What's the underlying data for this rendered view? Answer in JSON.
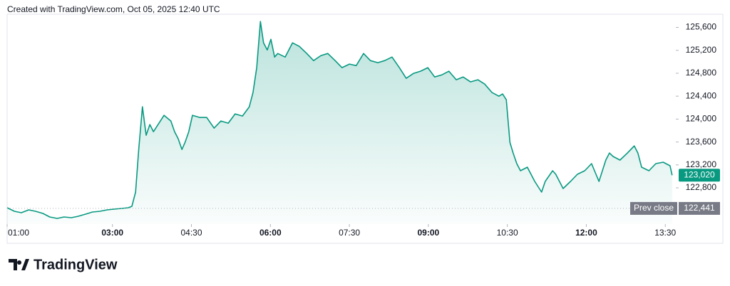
{
  "chart_data": {
    "type": "area",
    "title": "Created with TradingView.com, Oct 05, 2025 12:40 UTC",
    "brand": "TradingView",
    "color": "#089981",
    "x": [
      1.0,
      1.14,
      1.27,
      1.41,
      1.54,
      1.68,
      1.81,
      1.95,
      2.08,
      2.22,
      2.35,
      2.49,
      2.62,
      2.76,
      2.9,
      3.03,
      3.17,
      3.3,
      3.37,
      3.44,
      3.5,
      3.57,
      3.64,
      3.71,
      3.78,
      3.84,
      3.98,
      4.11,
      4.18,
      4.25,
      4.32,
      4.38,
      4.45,
      4.52,
      4.66,
      4.79,
      4.93,
      5.06,
      5.2,
      5.33,
      5.47,
      5.6,
      5.67,
      5.74,
      5.81,
      5.87,
      5.94,
      6.01,
      6.08,
      6.14,
      6.28,
      6.42,
      6.55,
      6.69,
      6.82,
      6.96,
      7.09,
      7.23,
      7.36,
      7.5,
      7.63,
      7.77,
      7.9,
      8.04,
      8.17,
      8.31,
      8.45,
      8.58,
      8.72,
      8.85,
      8.99,
      9.12,
      9.26,
      9.39,
      9.53,
      9.66,
      9.8,
      9.94,
      10.07,
      10.21,
      10.34,
      10.41,
      10.48,
      10.55,
      10.61,
      10.68,
      10.75,
      10.88,
      11.02,
      11.15,
      11.22,
      11.36,
      11.42,
      11.56,
      11.7,
      11.83,
      11.97,
      12.1,
      12.24,
      12.37,
      12.44,
      12.51,
      12.64,
      12.78,
      12.91,
      12.98,
      13.05,
      13.19,
      13.32,
      13.46,
      13.59,
      13.63
    ],
    "values": [
      122453,
      122391,
      122366,
      122415,
      122391,
      122353,
      122291,
      122266,
      122291,
      122279,
      122304,
      122341,
      122378,
      122391,
      122415,
      122428,
      122440,
      122453,
      122477,
      122726,
      123470,
      124214,
      123718,
      123904,
      123780,
      123867,
      124065,
      123966,
      123780,
      123656,
      123470,
      123594,
      123780,
      124065,
      124028,
      124028,
      123842,
      123966,
      123929,
      124090,
      124053,
      124214,
      124463,
      124897,
      125703,
      125331,
      125207,
      125393,
      125083,
      125145,
      125083,
      125331,
      125269,
      125145,
      125021,
      125108,
      125145,
      125021,
      124897,
      124959,
      124934,
      125145,
      125021,
      124984,
      125021,
      125083,
      124897,
      124711,
      124798,
      124835,
      124897,
      124735,
      124773,
      124835,
      124686,
      124735,
      124649,
      124686,
      124611,
      124463,
      124400,
      124438,
      124338,
      123594,
      123408,
      123222,
      123098,
      123160,
      122912,
      122726,
      122912,
      123098,
      123036,
      122788,
      122912,
      123036,
      123098,
      123222,
      122912,
      123284,
      123408,
      123346,
      123284,
      123408,
      123532,
      123408,
      123160,
      123098,
      123222,
      123247,
      123185,
      123020
    ],
    "last_value_label": "123,020",
    "prev_close": {
      "label": "Prev close",
      "value": 122441,
      "value_label": "122,441"
    },
    "xlim": [
      1.0,
      13.7
    ],
    "ylim": [
      122167,
      125830
    ],
    "xticks": [
      {
        "value": 1,
        "label": "01:00"
      },
      {
        "value": 3,
        "label": "03:00"
      },
      {
        "value": 4.5,
        "label": "04:30"
      },
      {
        "value": 6,
        "label": "06:00"
      },
      {
        "value": 7.5,
        "label": "07:30"
      },
      {
        "value": 9,
        "label": "09:00"
      },
      {
        "value": 10.5,
        "label": "10:30"
      },
      {
        "value": 12,
        "label": "12:00"
      },
      {
        "value": 13.5,
        "label": "13:30"
      }
    ],
    "yticks": [
      {
        "value": 122800,
        "label": "122,800"
      },
      {
        "value": 123200,
        "label": "123,200"
      },
      {
        "value": 123600,
        "label": "123,600"
      },
      {
        "value": 124000,
        "label": "124,000"
      },
      {
        "value": 124400,
        "label": "124,400"
      },
      {
        "value": 124800,
        "label": "124,800"
      },
      {
        "value": 125200,
        "label": "125,200"
      },
      {
        "value": 125600,
        "label": "125,600"
      }
    ]
  }
}
